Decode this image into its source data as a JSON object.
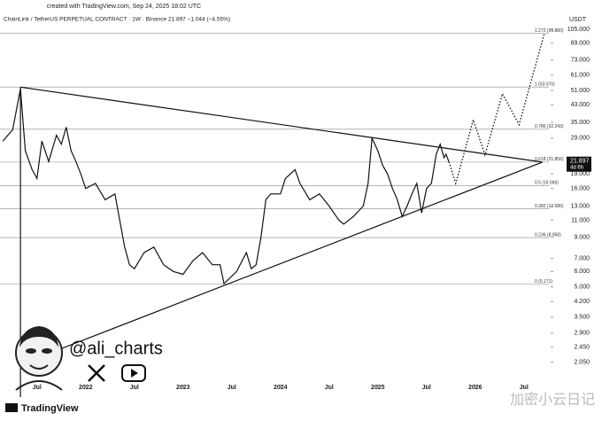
{
  "chart_data": {
    "type": "line",
    "watermark_top": "created with TradingView.com, Sep 24, 2025 18:02 UTC",
    "title": "ChainLink / TetherUS PERPETUAL CONTRACT · 1W · Binance  21.897  −1.044 (−4.55%)",
    "currency": "USDT",
    "log_scale": true,
    "grid": false,
    "color": "#111111",
    "xlim": [
      2021.12,
      2026.72
    ],
    "ylim": [
      1.36,
      110.7
    ],
    "xticks": [
      {
        "value": 2021.5,
        "label": "Jul"
      },
      2022,
      {
        "value": 2022.5,
        "label": "Jul"
      },
      2023,
      {
        "value": 2023.5,
        "label": "Jul"
      },
      2024,
      {
        "value": 2024.5,
        "label": "Jul"
      },
      2025,
      {
        "value": 2025.5,
        "label": "Jul"
      },
      2026,
      {
        "value": 2026.5,
        "label": "Jul"
      }
    ],
    "yticks": [
      {
        "value": 105,
        "label": "105.000"
      },
      {
        "value": 89,
        "label": "89.000"
      },
      {
        "value": 73,
        "label": "73.000"
      },
      {
        "value": 61,
        "label": "61.000"
      },
      {
        "value": 51,
        "label": "51.000"
      },
      {
        "value": 43,
        "label": "43.000"
      },
      {
        "value": 35,
        "label": "35.000"
      },
      {
        "value": 29,
        "label": "29.000"
      },
      {
        "value": 19,
        "label": "19.000"
      },
      {
        "value": 16,
        "label": "16.000"
      },
      {
        "value": 13,
        "label": "13.000"
      },
      {
        "value": 11,
        "label": "11.000"
      },
      {
        "value": 9,
        "label": "9.000"
      },
      {
        "value": 7,
        "label": "7.000"
      },
      {
        "value": 6,
        "label": "6.000"
      },
      {
        "value": 5,
        "label": "5.000"
      },
      {
        "value": 4.2,
        "label": "4.200"
      },
      {
        "value": 3.5,
        "label": "3.500"
      },
      {
        "value": 2.9,
        "label": "2.900"
      },
      {
        "value": 2.45,
        "label": "2.450"
      },
      {
        "value": 2.05,
        "label": "2.050"
      }
    ],
    "x": [
      2021.15,
      2021.2,
      2021.25,
      2021.33,
      2021.38,
      2021.45,
      2021.5,
      2021.55,
      2021.62,
      2021.7,
      2021.75,
      2021.8,
      2021.85,
      2021.9,
      2021.95,
      2022.0,
      2022.1,
      2022.2,
      2022.3,
      2022.4,
      2022.45,
      2022.5,
      2022.6,
      2022.7,
      2022.8,
      2022.9,
      2023.0,
      2023.1,
      2023.2,
      2023.3,
      2023.38,
      2023.42,
      2023.55,
      2023.65,
      2023.7,
      2023.75,
      2023.8,
      2023.85,
      2023.9,
      2024.0,
      2024.05,
      2024.15,
      2024.2,
      2024.3,
      2024.4,
      2024.5,
      2024.6,
      2024.65,
      2024.75,
      2024.85,
      2024.9,
      2024.94,
      2025.0,
      2025.05,
      2025.1,
      2025.15,
      2025.2,
      2025.25,
      2025.3,
      2025.35,
      2025.4,
      2025.45,
      2025.5,
      2025.55,
      2025.6,
      2025.64,
      2025.68,
      2025.7,
      2025.73
    ],
    "values": [
      28,
      30,
      32,
      52,
      25,
      20,
      18,
      28,
      22,
      30,
      27,
      33,
      25,
      22,
      19,
      16,
      17,
      14,
      15,
      8,
      6.5,
      6.2,
      7.5,
      8,
      6.5,
      6,
      5.8,
      6.8,
      7.5,
      6.5,
      6.5,
      5.2,
      6,
      7.5,
      6.2,
      6.5,
      9,
      14,
      15,
      15,
      18,
      20,
      17,
      14,
      15,
      13,
      11,
      10.5,
      11.5,
      13,
      17,
      29,
      25,
      21,
      19,
      16,
      14,
      11.5,
      13,
      15,
      17,
      12,
      16,
      17,
      24,
      27,
      23,
      24,
      21.897
    ],
    "projection": {
      "x": [
        2025.73,
        2025.8,
        2025.98,
        2026.1,
        2026.28,
        2026.45,
        2026.71
      ],
      "y": [
        21.897,
        17,
        36,
        23.8,
        49,
        34,
        100
      ]
    },
    "trendlines": [
      {
        "x": [
          2021.33,
          2026.69
        ],
        "y": [
          53,
          21.856
        ]
      },
      {
        "x": [
          2021.33,
          2026.69
        ],
        "y": [
          2.0,
          21.856
        ]
      },
      {
        "x": [
          2021.33,
          2021.33
        ],
        "y": [
          53,
          1.36
        ]
      }
    ],
    "fib_levels": [
      {
        "label": "1.272 (99.880)",
        "value": 99.88
      },
      {
        "label": "1 (53.070)",
        "value": 53.07
      },
      {
        "label": "0.786 (32.243)",
        "value": 32.243
      },
      {
        "label": "0.618 (21.856)",
        "value": 21.856
      },
      {
        "label": "0.5 (16.566)",
        "value": 16.566
      },
      {
        "label": "0.382 (12.586)",
        "value": 12.586
      },
      {
        "label": "0.236 (8.958)",
        "value": 8.958
      },
      {
        "label": "0 (5.171)",
        "value": 5.171
      }
    ],
    "last_price": 21.897,
    "countdown": "4d 6h",
    "handle": "@ali_charts",
    "brand": "TradingView",
    "watermark": "加密小云日记"
  }
}
